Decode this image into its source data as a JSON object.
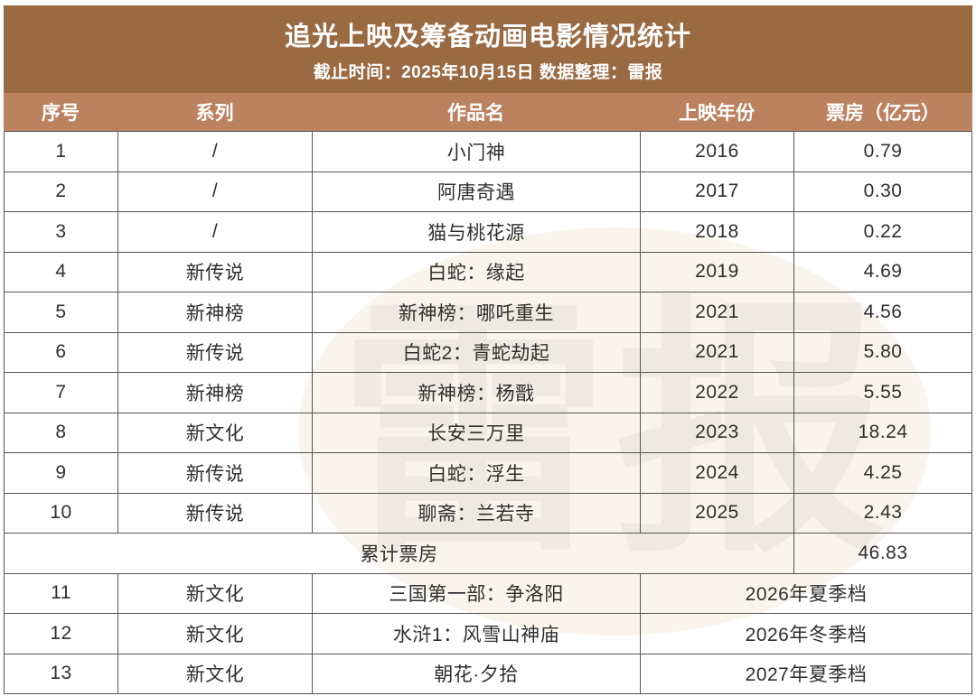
{
  "chart_data": {
    "type": "table",
    "title": "追光上映及筹备动画电影情况统计",
    "subtitle": "截止时间：2025年10月15日 数据整理：雷报",
    "columns": [
      "序号",
      "系列",
      "作品名",
      "上映年份",
      "票房（亿元）"
    ],
    "rows_released": [
      {
        "no": "1",
        "series": "/",
        "title": "小门神",
        "year": "2016",
        "box": "0.79"
      },
      {
        "no": "2",
        "series": "/",
        "title": "阿唐奇遇",
        "year": "2017",
        "box": "0.30"
      },
      {
        "no": "3",
        "series": "/",
        "title": "猫与桃花源",
        "year": "2018",
        "box": "0.22"
      },
      {
        "no": "4",
        "series": "新传说",
        "title": "白蛇：缘起",
        "year": "2019",
        "box": "4.69"
      },
      {
        "no": "5",
        "series": "新神榜",
        "title": "新神榜：哪吒重生",
        "year": "2021",
        "box": "4.56"
      },
      {
        "no": "6",
        "series": "新传说",
        "title": "白蛇2：青蛇劫起",
        "year": "2021",
        "box": "5.80"
      },
      {
        "no": "7",
        "series": "新神榜",
        "title": "新神榜：杨戬",
        "year": "2022",
        "box": "5.55"
      },
      {
        "no": "8",
        "series": "新文化",
        "title": "长安三万里",
        "year": "2023",
        "box": "18.24"
      },
      {
        "no": "9",
        "series": "新传说",
        "title": "白蛇：浮生",
        "year": "2024",
        "box": "4.25"
      },
      {
        "no": "10",
        "series": "新传说",
        "title": "聊斋：兰若寺",
        "year": "2025",
        "box": "2.43"
      }
    ],
    "summary": {
      "label": "累计票房",
      "total": "46.83"
    },
    "rows_upcoming": [
      {
        "no": "11",
        "series": "新文化",
        "title": "三国第一部：争洛阳",
        "schedule": "2026年夏季档"
      },
      {
        "no": "12",
        "series": "新文化",
        "title": "水浒1：风雪山神庙",
        "schedule": "2026年冬季档"
      },
      {
        "no": "13",
        "series": "新文化",
        "title": "朝花·夕拾",
        "schedule": "2027年夏季档"
      }
    ]
  },
  "watermark": {
    "text": "雷报"
  },
  "colors": {
    "band_dark": "#9a6a43",
    "band_light": "#bc8260",
    "border": "#555555",
    "text": "#2f2f2f",
    "watermark_bg": "#f9f5ed"
  }
}
